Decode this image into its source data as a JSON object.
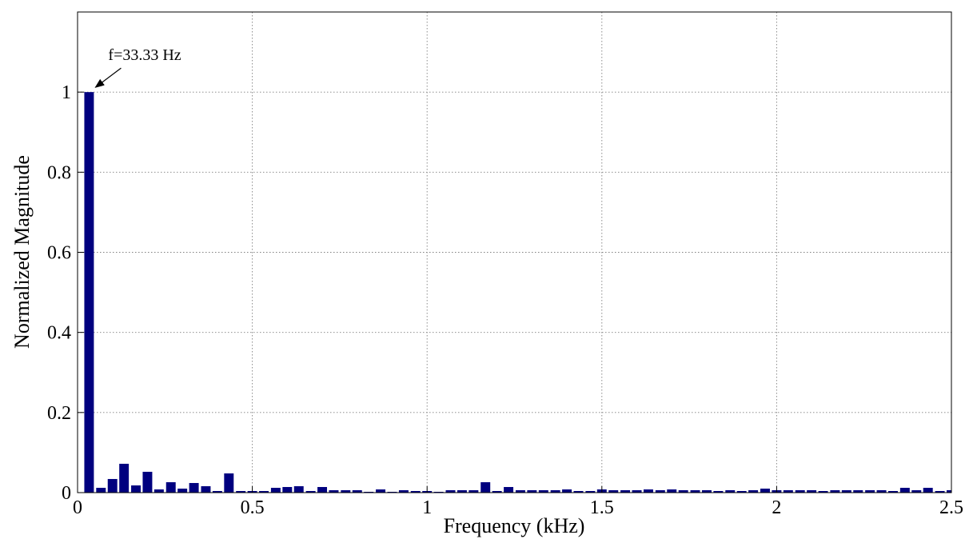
{
  "chart_data": {
    "type": "bar",
    "xlabel": "Frequency (kHz)",
    "ylabel": "Normalized Magnitude",
    "annotation": "f=33.33 Hz",
    "color": "#00007f",
    "grid": true,
    "xlim": [
      0,
      2.5
    ],
    "ylim": [
      0,
      1.2
    ],
    "xticks": [
      0,
      0.5,
      1,
      1.5,
      2,
      2.5
    ],
    "yticks": [
      0,
      0.2,
      0.4,
      0.6,
      0.8,
      1
    ],
    "x": [
      0.033,
      0.067,
      0.1,
      0.133,
      0.167,
      0.2,
      0.233,
      0.267,
      0.3,
      0.333,
      0.367,
      0.4,
      0.433,
      0.467,
      0.5,
      0.533,
      0.567,
      0.6,
      0.633,
      0.667,
      0.7,
      0.733,
      0.767,
      0.8,
      0.833,
      0.867,
      0.9,
      0.933,
      0.967,
      1,
      1.033,
      1.067,
      1.1,
      1.133,
      1.167,
      1.2,
      1.233,
      1.267,
      1.3,
      1.333,
      1.367,
      1.4,
      1.433,
      1.467,
      1.5,
      1.533,
      1.567,
      1.6,
      1.633,
      1.667,
      1.7,
      1.733,
      1.767,
      1.8,
      1.833,
      1.867,
      1.9,
      1.933,
      1.967,
      2,
      2.033,
      2.067,
      2.1,
      2.133,
      2.167,
      2.2,
      2.233,
      2.267,
      2.3,
      2.333,
      2.367,
      2.4,
      2.433,
      2.467,
      2.5
    ],
    "values": [
      1.0,
      0.012,
      0.034,
      0.072,
      0.018,
      0.052,
      0.008,
      0.026,
      0.01,
      0.024,
      0.016,
      0.004,
      0.048,
      0.004,
      0.004,
      0.004,
      0.012,
      0.014,
      0.016,
      0.004,
      0.014,
      0.006,
      0.006,
      0.006,
      0.002,
      0.008,
      0.002,
      0.006,
      0.004,
      0.004,
      0.002,
      0.006,
      0.006,
      0.006,
      0.026,
      0.004,
      0.014,
      0.006,
      0.006,
      0.006,
      0.006,
      0.008,
      0.004,
      0.004,
      0.008,
      0.006,
      0.006,
      0.006,
      0.008,
      0.006,
      0.008,
      0.006,
      0.006,
      0.006,
      0.004,
      0.006,
      0.004,
      0.006,
      0.01,
      0.006,
      0.006,
      0.006,
      0.006,
      0.004,
      0.006,
      0.006,
      0.006,
      0.006,
      0.006,
      0.004,
      0.012,
      0.006,
      0.012,
      0.004,
      0.006
    ]
  }
}
